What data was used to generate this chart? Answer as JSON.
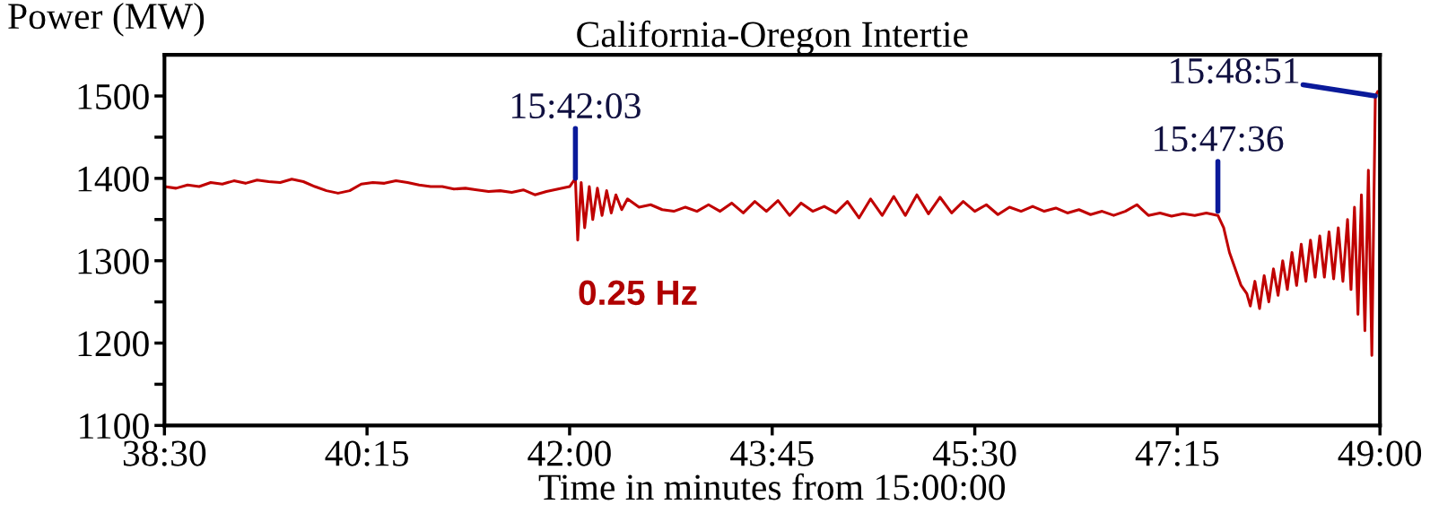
{
  "chart_data": {
    "type": "line",
    "title": "California-Oregon Intertie",
    "ylabel": "Power (MW)",
    "xlabel": "Time in minutes from 15:00:00",
    "xlim": [
      38.5,
      49
    ],
    "xticks": [
      {
        "value": 38.5,
        "label": "38:30"
      },
      {
        "value": 40.25,
        "label": "40:15"
      },
      {
        "value": 42,
        "label": "42:00"
      },
      {
        "value": 43.75,
        "label": "43:45"
      },
      {
        "value": 45.5,
        "label": "45:30"
      },
      {
        "value": 47.25,
        "label": "47:15"
      },
      {
        "value": 49,
        "label": "49:00"
      }
    ],
    "ylim": [
      1100,
      1550
    ],
    "yticks": [
      1100,
      {
        "value": 1150,
        "label": null
      },
      1200,
      {
        "value": 1250,
        "label": null
      },
      1300,
      {
        "value": 1350,
        "label": null
      },
      1400,
      {
        "value": 1450,
        "label": null
      },
      1500
    ],
    "grid": false,
    "legend": false,
    "marker": "none",
    "line_style": "solid",
    "series": [
      {
        "color": "#c00000",
        "x": [
          38.5,
          38.6,
          38.7,
          38.8,
          38.9,
          39.0,
          39.1,
          39.2,
          39.3,
          39.4,
          39.5,
          39.6,
          39.7,
          39.8,
          39.9,
          40.0,
          40.1,
          40.2,
          40.3,
          40.4,
          40.5,
          40.6,
          40.7,
          40.8,
          40.9,
          41.0,
          41.1,
          41.2,
          41.3,
          41.4,
          41.5,
          41.6,
          41.7,
          41.8,
          41.9,
          42.0,
          42.05,
          42.07,
          42.1,
          42.13,
          42.17,
          42.2,
          42.24,
          42.28,
          42.32,
          42.36,
          42.4,
          42.45,
          42.5,
          42.6,
          42.7,
          42.8,
          42.9,
          43.0,
          43.1,
          43.2,
          43.3,
          43.4,
          43.5,
          43.6,
          43.7,
          43.8,
          43.9,
          44.0,
          44.1,
          44.2,
          44.3,
          44.4,
          44.5,
          44.6,
          44.7,
          44.8,
          44.9,
          45.0,
          45.1,
          45.2,
          45.3,
          45.4,
          45.5,
          45.6,
          45.7,
          45.8,
          45.9,
          46.0,
          46.1,
          46.2,
          46.3,
          46.4,
          46.5,
          46.6,
          46.7,
          46.8,
          46.9,
          47.0,
          47.1,
          47.2,
          47.3,
          47.4,
          47.5,
          47.6,
          47.65,
          47.7,
          47.75,
          47.8,
          47.85,
          47.88,
          47.92,
          47.96,
          48.0,
          48.04,
          48.08,
          48.12,
          48.16,
          48.2,
          48.24,
          48.28,
          48.32,
          48.36,
          48.4,
          48.44,
          48.48,
          48.52,
          48.56,
          48.6,
          48.64,
          48.68,
          48.72,
          48.75,
          48.78,
          48.81,
          48.84,
          48.87,
          48.9,
          48.93,
          48.96,
          48.98
        ],
        "values": [
          1390,
          1388,
          1392,
          1390,
          1395,
          1393,
          1397,
          1394,
          1398,
          1396,
          1395,
          1399,
          1396,
          1390,
          1385,
          1382,
          1385,
          1393,
          1395,
          1394,
          1397,
          1395,
          1392,
          1390,
          1390,
          1387,
          1388,
          1386,
          1384,
          1385,
          1383,
          1386,
          1380,
          1384,
          1387,
          1390,
          1400,
          1325,
          1395,
          1340,
          1390,
          1350,
          1388,
          1355,
          1385,
          1358,
          1380,
          1362,
          1375,
          1365,
          1368,
          1362,
          1360,
          1365,
          1360,
          1368,
          1360,
          1370,
          1358,
          1372,
          1360,
          1373,
          1355,
          1370,
          1360,
          1366,
          1358,
          1372,
          1352,
          1375,
          1355,
          1378,
          1355,
          1380,
          1357,
          1377,
          1358,
          1372,
          1360,
          1368,
          1356,
          1365,
          1360,
          1366,
          1360,
          1364,
          1358,
          1362,
          1356,
          1360,
          1355,
          1360,
          1368,
          1355,
          1358,
          1354,
          1357,
          1355,
          1358,
          1355,
          1340,
          1310,
          1290,
          1270,
          1260,
          1245,
          1275,
          1242,
          1282,
          1250,
          1290,
          1258,
          1300,
          1265,
          1310,
          1270,
          1320,
          1275,
          1325,
          1280,
          1330,
          1280,
          1335,
          1278,
          1340,
          1275,
          1350,
          1265,
          1365,
          1235,
          1380,
          1215,
          1410,
          1185,
          1500,
          1505
        ]
      }
    ],
    "annotations": [
      {
        "text": "15:42:03",
        "x": 42.05,
        "y": 1400
      },
      {
        "text": "15:47:36",
        "x": 47.6,
        "y": 1360
      },
      {
        "text": "15:48:51",
        "x": 48.96,
        "y": 1500
      },
      "0.25 Hz"
    ]
  }
}
